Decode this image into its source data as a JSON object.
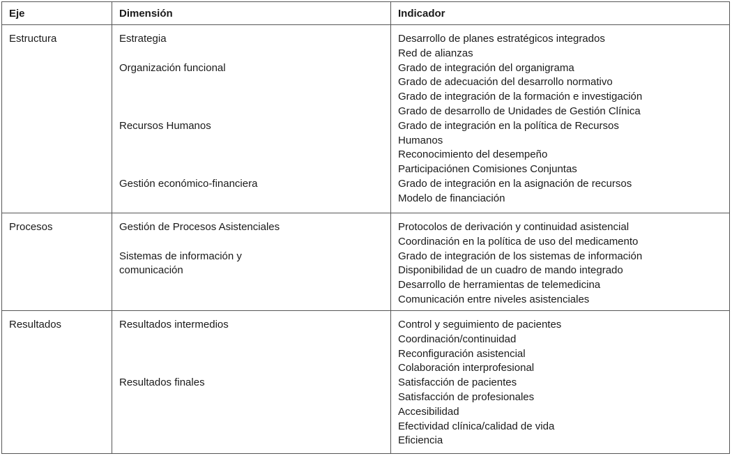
{
  "headers": [
    "Eje",
    "Dimensión",
    "Indicador"
  ],
  "rows": [
    {
      "eje": "Estructura",
      "dimensiones": [
        {
          "label": "Estrategia",
          "line": 0
        },
        {
          "label": "Organización funcional",
          "line": 2
        },
        {
          "label": "Recursos Humanos",
          "line": 6
        },
        {
          "label": "Gestión económico-financiera",
          "line": 10
        }
      ],
      "indicadores": [
        "Desarrollo de planes estratégicos integrados",
        "Red de alianzas",
        "Grado de integración del organigrama",
        "Grado de adecuación del desarrollo normativo",
        "Grado de integración de la formación e investigación",
        "Grado de desarrollo de Unidades de Gestión Clínica",
        "Grado de integración en la política de Recursos",
        "Humanos",
        "Reconocimiento del desempeño",
        "Participaciónen Comisiones Conjuntas",
        "Grado de integración en la asignación de recursos",
        "Modelo de financiación"
      ]
    },
    {
      "eje": "Procesos",
      "dimensiones": [
        {
          "label": "Gestión de Procesos Asistenciales",
          "line": 0
        },
        {
          "label": "Sistemas de información y",
          "line": 2
        },
        {
          "label": "comunicación",
          "line": 3
        }
      ],
      "indicadores": [
        "Protocolos de derivación y continuidad asistencial",
        "Coordinación en la política de uso del medicamento",
        "Grado de integración de los sistemas de información",
        "Disponibilidad de un cuadro de mando integrado",
        "Desarrollo de herramientas de telemedicina",
        "Comunicación entre niveles asistenciales"
      ]
    },
    {
      "eje": "Resultados",
      "dimensiones": [
        {
          "label": "Resultados intermedios",
          "line": 0
        },
        {
          "label": "Resultados finales",
          "line": 4
        }
      ],
      "indicadores": [
        "Control y seguimiento de pacientes",
        "Coordinación/continuidad",
        "Reconfiguración asistencial",
        "Colaboración interprofesional",
        "Satisfacción de pacientes",
        "Satisfacción de profesionales",
        "Accesibilidad",
        "Efectividad clínica/calidad de vida",
        "Eficiencia"
      ]
    }
  ]
}
